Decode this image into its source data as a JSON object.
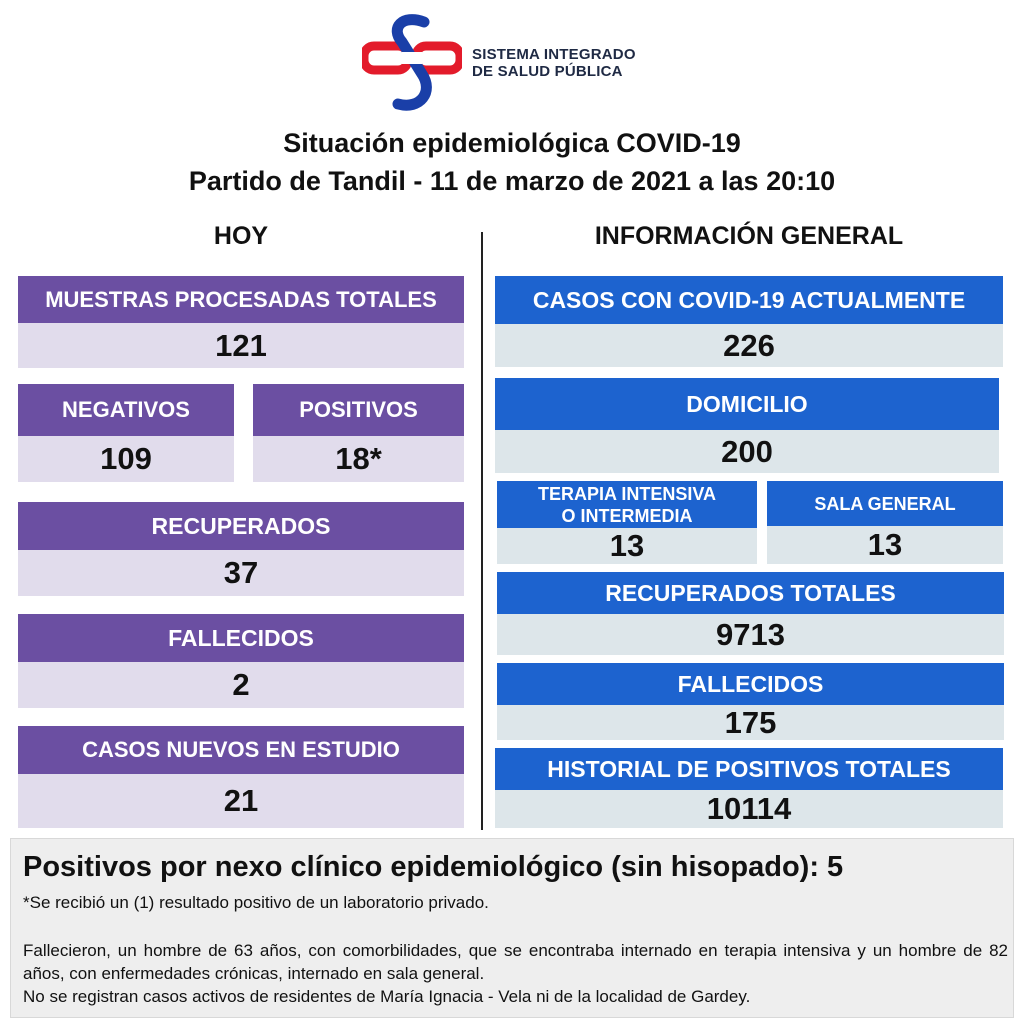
{
  "logo": {
    "icon": "sistema-integrado-logo",
    "line1": "SISTEMA INTEGRADO",
    "line2": "DE SALUD PÚBLICA"
  },
  "title": {
    "line1": "Situación epidemiológica COVID-19",
    "line2": "Partido de Tandil - 11 de marzo de 2021 a las 20:10"
  },
  "hoy": {
    "heading": "HOY",
    "muestras": {
      "label": "MUESTRAS PROCESADAS TOTALES",
      "value": "121"
    },
    "negativos": {
      "label": "NEGATIVOS",
      "value": "109"
    },
    "positivos": {
      "label": "POSITIVOS",
      "value": "18*"
    },
    "recuperados": {
      "label": "RECUPERADOS",
      "value": "37"
    },
    "fallecidos": {
      "label": "FALLECIDOS",
      "value": "2"
    },
    "nuevos": {
      "label": "CASOS NUEVOS EN ESTUDIO",
      "value": "21"
    }
  },
  "general": {
    "heading": "INFORMACIÓN GENERAL",
    "actuales": {
      "label": "CASOS CON COVID-19 ACTUALMENTE",
      "value": "226"
    },
    "domicilio": {
      "label": "DOMICILIO",
      "value": "200"
    },
    "terapia": {
      "label_line1": "TERAPIA INTENSIVA",
      "label_line2": "O INTERMEDIA",
      "value": "13"
    },
    "sala": {
      "label": "SALA GENERAL",
      "value": "13"
    },
    "recuperados_totales": {
      "label": "RECUPERADOS TOTALES",
      "value": "9713"
    },
    "fallecidos": {
      "label": "FALLECIDOS",
      "value": "175"
    },
    "historial": {
      "label": "HISTORIAL DE POSITIVOS TOTALES",
      "value": "10114"
    }
  },
  "footer": {
    "headline": "Positivos por nexo clínico epidemiológico (sin hisopado): 5",
    "note": "*Se recibió un (1) resultado positivo de un laboratorio privado.",
    "paragraph1": "Fallecieron, un hombre de 63 años, con comorbilidades, que se encontraba internado en terapia intensiva y un hombre de 82 años, con enfermedades crónicas, internado en sala general.",
    "paragraph2": "No se registran casos activos de residentes de María Ignacia - Vela ni de la localidad de Gardey."
  },
  "colors": {
    "purple_header": "#6b4fa2",
    "purple_value": "#e1dcec",
    "blue_header": "#1d63cf",
    "blue_value": "#dde6ea",
    "logo_red": "#e31b2b",
    "logo_blue": "#1a3fa8"
  }
}
